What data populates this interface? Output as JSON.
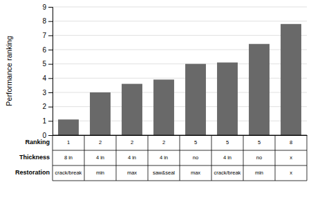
{
  "chart_data": {
    "type": "bar",
    "ylabel": "Performance ranking",
    "categories": [
      null,
      null,
      null,
      null,
      null,
      null,
      null,
      null
    ],
    "values": [
      1.1,
      3.0,
      3.6,
      3.9,
      5.0,
      5.1,
      6.4,
      7.8
    ],
    "color": "#696969",
    "ylim": [
      0,
      9
    ],
    "yticks": [
      0,
      1,
      2,
      3,
      4,
      5,
      6,
      7,
      8,
      9
    ],
    "grid": true,
    "table": [
      {
        "name": "Ranking",
        "cells": [
          "1",
          "2",
          "2",
          "2",
          "5",
          "5",
          "5",
          "8"
        ]
      },
      {
        "name": "Thickness",
        "cells": [
          "8 in",
          "4 in",
          "4 in",
          "4 in",
          "no",
          "4 in",
          "no",
          "x"
        ]
      },
      {
        "name": "Restoration",
        "cells": [
          "crack/break",
          "min",
          "max",
          "saw&seal",
          "max",
          "crack/break",
          "min",
          "x"
        ]
      }
    ]
  }
}
